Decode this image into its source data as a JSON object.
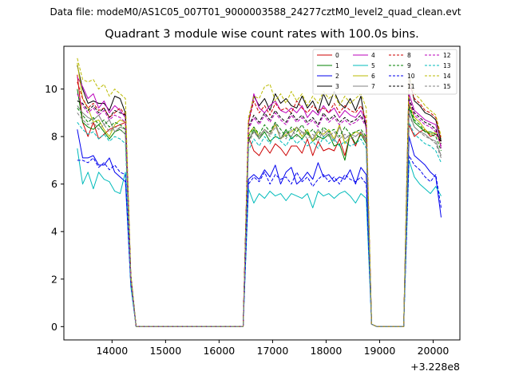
{
  "suptitle": "Data file: modeM0/AS1C05_007T01_9000003588_24277cztM0_level2_quad_clean.evt",
  "chart_data": {
    "type": "line",
    "title": "Quadrant 3 module wise count rates with 100.0s bins.",
    "xlabel": "",
    "ylabel": "",
    "x_offset_label": "+3.228e8",
    "xlim": [
      13100,
      20500
    ],
    "ylim": [
      -0.56,
      11.8
    ],
    "xticks": [
      14000,
      15000,
      16000,
      17000,
      18000,
      19000,
      20000
    ],
    "yticks": [
      0,
      2,
      4,
      6,
      8,
      10
    ],
    "grid": false,
    "legend_position": "top-right",
    "x": [
      13350,
      13450,
      13550,
      13650,
      13750,
      13850,
      13950,
      14050,
      14150,
      14250,
      14350,
      14450,
      14550,
      14650,
      14750,
      14850,
      14950,
      15050,
      15150,
      15250,
      15350,
      15450,
      15550,
      15650,
      15750,
      15850,
      15950,
      16050,
      16150,
      16250,
      16350,
      16450,
      16550,
      16650,
      16750,
      16850,
      16950,
      17050,
      17150,
      17250,
      17350,
      17450,
      17550,
      17650,
      17750,
      17850,
      17950,
      18050,
      18150,
      18250,
      18350,
      18450,
      18550,
      18650,
      18750,
      18850,
      18950,
      19050,
      19150,
      19250,
      19350,
      19450,
      19550,
      19650,
      19750,
      19850,
      19950,
      20050,
      20150
    ],
    "series": [
      {
        "name": "0",
        "color": "#cc0000",
        "dash": "solid",
        "values": [
          10.6,
          8.6,
          8.0,
          8.6,
          7.9,
          8.1,
          8.3,
          8.4,
          8.5,
          8.6,
          2.0,
          0,
          0,
          0,
          0,
          0,
          0,
          0,
          0,
          0,
          0,
          0,
          0,
          0,
          0,
          0,
          0,
          0,
          0,
          0,
          0,
          0,
          8.0,
          7.4,
          7.2,
          7.6,
          7.3,
          7.7,
          7.5,
          7.2,
          7.6,
          7.6,
          7.3,
          7.9,
          7.2,
          7.8,
          7.4,
          7.5,
          7.4,
          7.9,
          7.2,
          8.1,
          7.6,
          8.2,
          7.8,
          0.1,
          0,
          0,
          0,
          0,
          0,
          0,
          8.5,
          8.0,
          8.2,
          8.3,
          8.0,
          8.1,
          7.8
        ]
      },
      {
        "name": "1",
        "color": "#008000",
        "dash": "solid",
        "values": [
          10.0,
          8.6,
          8.4,
          8.3,
          8.5,
          8.2,
          7.9,
          8.2,
          8.3,
          8.1,
          2.0,
          0,
          0,
          0,
          0,
          0,
          0,
          0,
          0,
          0,
          0,
          0,
          0,
          0,
          0,
          0,
          0,
          0,
          0,
          0,
          0,
          0,
          7.8,
          8.3,
          7.9,
          8.2,
          7.8,
          8.0,
          7.9,
          8.3,
          7.9,
          8.1,
          7.9,
          8.2,
          7.8,
          8.0,
          7.9,
          8.1,
          7.6,
          7.7,
          7.0,
          8.1,
          7.7,
          8.1,
          7.7,
          0.1,
          0,
          0,
          0,
          0,
          0,
          0,
          9.2,
          8.6,
          8.4,
          8.2,
          8.2,
          8.1,
          7.9
        ]
      },
      {
        "name": "2",
        "color": "#0000ee",
        "dash": "solid",
        "values": [
          8.3,
          7.1,
          7.1,
          7.2,
          6.8,
          6.8,
          7.1,
          6.5,
          6.3,
          6.1,
          1.8,
          0,
          0,
          0,
          0,
          0,
          0,
          0,
          0,
          0,
          0,
          0,
          0,
          0,
          0,
          0,
          0,
          0,
          0,
          0,
          0,
          0,
          6.2,
          6.4,
          6.2,
          6.6,
          6.3,
          6.8,
          6.0,
          6.5,
          6.7,
          6.0,
          6.2,
          6.5,
          6.2,
          6.9,
          6.3,
          6.4,
          6.1,
          6.3,
          6.2,
          6.6,
          6.0,
          6.7,
          6.4,
          0.1,
          0,
          0,
          0,
          0,
          0,
          0,
          8.0,
          7.2,
          7.0,
          6.8,
          6.5,
          6.3,
          4.6
        ]
      },
      {
        "name": "3",
        "color": "#000000",
        "dash": "solid",
        "values": [
          11.0,
          10.0,
          9.4,
          9.5,
          9.4,
          9.4,
          9.1,
          9.7,
          9.6,
          9.0,
          2.2,
          0,
          0,
          0,
          0,
          0,
          0,
          0,
          0,
          0,
          0,
          0,
          0,
          0,
          0,
          0,
          0,
          0,
          0,
          0,
          0,
          0,
          8.6,
          9.7,
          9.3,
          9.6,
          9.1,
          9.8,
          9.4,
          9.6,
          9.3,
          9.2,
          9.7,
          9.2,
          9.5,
          9.0,
          9.8,
          9.3,
          9.9,
          9.4,
          9.2,
          9.6,
          9.1,
          9.7,
          8.3,
          0.1,
          0,
          0,
          0,
          0,
          0,
          0,
          10.5,
          9.5,
          9.3,
          9.0,
          8.9,
          8.7,
          7.8
        ]
      },
      {
        "name": "4",
        "color": "#bb00bb",
        "dash": "solid",
        "values": [
          10.5,
          10.1,
          9.6,
          9.8,
          9.2,
          9.5,
          9.0,
          9.3,
          9.1,
          8.8,
          2.1,
          0,
          0,
          0,
          0,
          0,
          0,
          0,
          0,
          0,
          0,
          0,
          0,
          0,
          0,
          0,
          0,
          0,
          0,
          0,
          0,
          0,
          8.5,
          9.8,
          9.2,
          9.0,
          9.3,
          9.5,
          9.1,
          9.0,
          9.2,
          9.0,
          9.3,
          8.8,
          9.1,
          8.9,
          9.3,
          9.0,
          9.2,
          8.8,
          9.1,
          8.9,
          8.8,
          9.1,
          8.6,
          0.1,
          0,
          0,
          0,
          0,
          0,
          0,
          9.8,
          9.1,
          8.9,
          8.7,
          8.6,
          8.5,
          7.5
        ]
      },
      {
        "name": "5",
        "color": "#00bbbb",
        "dash": "solid",
        "values": [
          7.5,
          6.0,
          6.5,
          5.8,
          6.5,
          6.2,
          6.1,
          5.7,
          5.6,
          6.5,
          1.7,
          0,
          0,
          0,
          0,
          0,
          0,
          0,
          0,
          0,
          0,
          0,
          0,
          0,
          0,
          0,
          0,
          0,
          0,
          0,
          0,
          0,
          5.8,
          5.2,
          5.6,
          5.4,
          5.7,
          5.5,
          5.6,
          5.3,
          5.6,
          5.5,
          5.4,
          5.6,
          5.0,
          5.7,
          5.5,
          5.6,
          5.4,
          5.6,
          5.7,
          5.5,
          5.2,
          5.6,
          5.4,
          0.1,
          0,
          0,
          0,
          0,
          0,
          0,
          7.0,
          6.3,
          6.0,
          5.8,
          5.6,
          5.9,
          5.5
        ]
      },
      {
        "name": "6",
        "color": "#bbbb00",
        "dash": "solid",
        "values": [
          11.1,
          9.6,
          9.2,
          8.6,
          8.7,
          8.3,
          8.0,
          8.5,
          8.7,
          8.6,
          2.0,
          0,
          0,
          0,
          0,
          0,
          0,
          0,
          0,
          0,
          0,
          0,
          0,
          0,
          0,
          0,
          0,
          0,
          0,
          0,
          0,
          0,
          8.1,
          8.4,
          8.0,
          8.3,
          8.1,
          8.5,
          7.9,
          8.1,
          8.2,
          8.4,
          8.0,
          8.3,
          7.8,
          8.2,
          8.1,
          8.3,
          7.9,
          8.5,
          7.7,
          8.0,
          8.2,
          8.1,
          8.0,
          0.1,
          0,
          0,
          0,
          0,
          0,
          0,
          9.4,
          8.8,
          8.6,
          8.3,
          8.1,
          8.2,
          7.6
        ]
      },
      {
        "name": "7",
        "color": "#808080",
        "dash": "solid",
        "values": [
          9.3,
          9.0,
          8.8,
          8.7,
          8.9,
          8.5,
          8.7,
          8.2,
          8.4,
          8.3,
          2.0,
          0,
          0,
          0,
          0,
          0,
          0,
          0,
          0,
          0,
          0,
          0,
          0,
          0,
          0,
          0,
          0,
          0,
          0,
          0,
          0,
          0,
          7.9,
          8.2,
          8.0,
          8.3,
          8.1,
          8.6,
          7.9,
          8.2,
          8.0,
          8.4,
          8.2,
          8.1,
          7.9,
          8.3,
          8.0,
          8.2,
          7.8,
          8.4,
          7.9,
          8.1,
          8.0,
          8.2,
          7.9,
          0.1,
          0,
          0,
          0,
          0,
          0,
          0,
          9.0,
          8.4,
          8.2,
          8.1,
          7.9,
          7.8,
          7.2
        ]
      },
      {
        "name": "8",
        "color": "#cc0000",
        "dash": "dashed",
        "values": [
          10.3,
          9.6,
          9.2,
          9.4,
          9.1,
          9.2,
          8.8,
          9.0,
          9.2,
          8.9,
          2.1,
          0,
          0,
          0,
          0,
          0,
          0,
          0,
          0,
          0,
          0,
          0,
          0,
          0,
          0,
          0,
          0,
          0,
          0,
          0,
          0,
          0,
          8.6,
          9.5,
          9.0,
          9.3,
          8.9,
          9.4,
          9.1,
          9.2,
          9.0,
          9.5,
          9.2,
          9.0,
          9.3,
          9.1,
          9.2,
          9.0,
          9.4,
          9.0,
          9.3,
          9.1,
          9.0,
          9.3,
          8.7,
          0.1,
          0,
          0,
          0,
          0,
          0,
          0,
          10.3,
          9.6,
          9.4,
          9.1,
          9.0,
          8.8,
          7.9
        ]
      },
      {
        "name": "9",
        "color": "#008000",
        "dash": "dashed",
        "values": [
          9.2,
          8.9,
          8.6,
          8.8,
          8.5,
          8.7,
          8.4,
          8.6,
          8.5,
          8.3,
          2.0,
          0,
          0,
          0,
          0,
          0,
          0,
          0,
          0,
          0,
          0,
          0,
          0,
          0,
          0,
          0,
          0,
          0,
          0,
          0,
          0,
          0,
          8.0,
          8.4,
          8.1,
          8.5,
          8.2,
          8.6,
          8.3,
          8.0,
          8.4,
          8.2,
          8.5,
          8.1,
          8.3,
          8.0,
          8.4,
          8.2,
          8.3,
          8.0,
          8.4,
          8.1,
          8.2,
          8.3,
          8.0,
          0.1,
          0,
          0,
          0,
          0,
          0,
          0,
          9.3,
          8.7,
          8.5,
          8.2,
          8.1,
          8.0,
          7.4
        ]
      },
      {
        "name": "10",
        "color": "#0000ee",
        "dash": "dashed",
        "values": [
          7.0,
          7.0,
          6.9,
          7.1,
          6.7,
          6.9,
          6.6,
          6.8,
          6.5,
          6.4,
          1.8,
          0,
          0,
          0,
          0,
          0,
          0,
          0,
          0,
          0,
          0,
          0,
          0,
          0,
          0,
          0,
          0,
          0,
          0,
          0,
          0,
          0,
          6.0,
          6.3,
          6.1,
          6.5,
          6.0,
          6.4,
          6.2,
          6.3,
          6.0,
          6.5,
          6.1,
          6.3,
          5.9,
          6.2,
          6.4,
          6.1,
          6.3,
          6.0,
          6.4,
          6.2,
          6.1,
          6.3,
          6.0,
          0.1,
          0,
          0,
          0,
          0,
          0,
          0,
          7.2,
          6.8,
          6.6,
          6.3,
          6.1,
          6.4,
          5.0
        ]
      },
      {
        "name": "11",
        "color": "#000000",
        "dash": "dashed",
        "values": [
          9.5,
          9.4,
          9.1,
          9.3,
          9.0,
          9.2,
          8.8,
          9.1,
          9.0,
          8.9,
          2.1,
          0,
          0,
          0,
          0,
          0,
          0,
          0,
          0,
          0,
          0,
          0,
          0,
          0,
          0,
          0,
          0,
          0,
          0,
          0,
          0,
          0,
          8.4,
          8.9,
          8.6,
          9.0,
          8.7,
          9.1,
          8.8,
          8.6,
          9.0,
          8.7,
          8.9,
          8.6,
          8.8,
          8.5,
          9.0,
          8.7,
          8.9,
          8.6,
          8.8,
          8.6,
          8.7,
          8.9,
          8.5,
          0.1,
          0,
          0,
          0,
          0,
          0,
          0,
          9.6,
          9.0,
          8.8,
          8.6,
          8.5,
          8.3,
          7.7
        ]
      },
      {
        "name": "12",
        "color": "#bb00bb",
        "dash": "dashed",
        "values": [
          9.8,
          9.3,
          9.0,
          9.2,
          8.9,
          9.1,
          8.7,
          8.9,
          8.8,
          8.6,
          2.0,
          0,
          0,
          0,
          0,
          0,
          0,
          0,
          0,
          0,
          0,
          0,
          0,
          0,
          0,
          0,
          0,
          0,
          0,
          0,
          0,
          0,
          8.3,
          8.8,
          8.5,
          8.9,
          8.6,
          9.0,
          8.7,
          8.5,
          8.9,
          8.6,
          8.8,
          8.5,
          8.7,
          8.4,
          8.9,
          8.6,
          8.8,
          8.5,
          8.7,
          8.5,
          8.6,
          8.8,
          8.4,
          0.1,
          0,
          0,
          0,
          0,
          0,
          0,
          9.5,
          8.9,
          8.7,
          8.5,
          8.4,
          8.2,
          7.6
        ]
      },
      {
        "name": "13",
        "color": "#00bbbb",
        "dash": "dashed",
        "values": [
          8.6,
          8.3,
          8.1,
          8.2,
          7.9,
          8.1,
          7.8,
          8.0,
          7.9,
          7.7,
          1.9,
          0,
          0,
          0,
          0,
          0,
          0,
          0,
          0,
          0,
          0,
          0,
          0,
          0,
          0,
          0,
          0,
          0,
          0,
          0,
          0,
          0,
          7.4,
          7.9,
          7.6,
          8.0,
          7.7,
          8.1,
          7.8,
          7.6,
          8.0,
          7.7,
          7.9,
          7.6,
          7.8,
          7.5,
          8.0,
          7.7,
          7.9,
          7.6,
          7.8,
          7.6,
          7.7,
          7.9,
          7.5,
          0.1,
          0,
          0,
          0,
          0,
          0,
          0,
          8.6,
          8.1,
          7.9,
          7.7,
          7.6,
          7.4,
          6.9
        ]
      },
      {
        "name": "14",
        "color": "#bbbb00",
        "dash": "dashed",
        "values": [
          11.3,
          10.4,
          10.3,
          10.4,
          10.0,
          10.2,
          9.7,
          10.0,
          9.8,
          9.6,
          2.2,
          0,
          0,
          0,
          0,
          0,
          0,
          0,
          0,
          0,
          0,
          0,
          0,
          0,
          0,
          0,
          0,
          0,
          0,
          0,
          0,
          0,
          8.8,
          9.7,
          9.6,
          10.1,
          10.2,
          9.5,
          9.8,
          9.4,
          9.9,
          9.5,
          9.8,
          9.3,
          9.7,
          9.4,
          9.9,
          9.6,
          9.8,
          9.3,
          9.7,
          9.4,
          9.6,
          9.8,
          9.2,
          0.1,
          0,
          0,
          0,
          0,
          0,
          0,
          10.6,
          9.8,
          9.6,
          9.3,
          9.1,
          8.9,
          8.0
        ]
      },
      {
        "name": "15",
        "color": "#808080",
        "dash": "dashed",
        "values": [
          9.0,
          8.7,
          8.5,
          8.6,
          8.3,
          8.5,
          8.2,
          8.4,
          8.3,
          8.1,
          2.0,
          0,
          0,
          0,
          0,
          0,
          0,
          0,
          0,
          0,
          0,
          0,
          0,
          0,
          0,
          0,
          0,
          0,
          0,
          0,
          0,
          0,
          7.7,
          8.2,
          7.9,
          8.3,
          8.0,
          8.4,
          8.1,
          7.9,
          8.3,
          8.0,
          8.2,
          7.9,
          8.1,
          7.8,
          8.3,
          8.0,
          8.2,
          7.9,
          8.1,
          7.9,
          8.0,
          8.2,
          7.8,
          0.1,
          0,
          0,
          0,
          0,
          0,
          0,
          8.9,
          8.4,
          8.2,
          8.0,
          7.9,
          7.7,
          7.1
        ]
      }
    ]
  }
}
